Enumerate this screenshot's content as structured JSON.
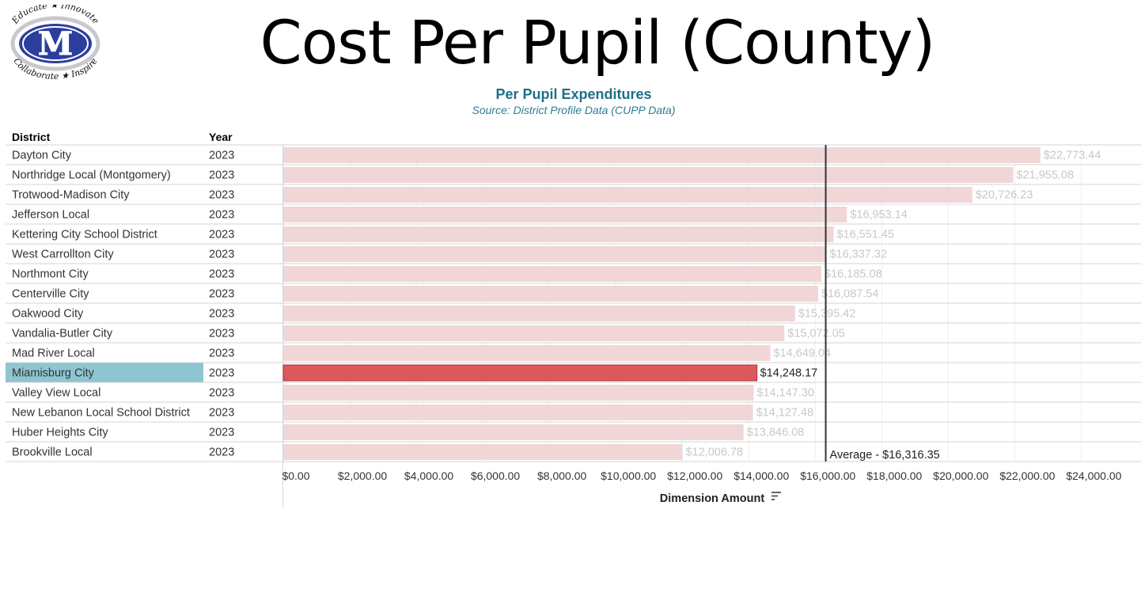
{
  "logo": {
    "letter": "M",
    "top_text": "Educate ★ Innovate",
    "bottom_text": "Collaborate ★ Inspire",
    "colors": {
      "primary": "#2c3e9e",
      "ring": "#c8c8d0"
    }
  },
  "header": {
    "title": "Cost Per Pupil (County)",
    "subtitle": "Per Pupil Expenditures",
    "source": "Source: District Profile Data (CUPP Data)"
  },
  "table": {
    "col_district": "District",
    "col_year": "Year"
  },
  "chart_data": {
    "type": "bar",
    "orientation": "horizontal",
    "xlabel": "Dimension Amount",
    "xlim": [
      0,
      25000
    ],
    "x_ticks": [
      "$0.00",
      "$2,000.00",
      "$4,000.00",
      "$6,000.00",
      "$8,000.00",
      "$10,000.00",
      "$12,000.00",
      "$14,000.00",
      "$16,000.00",
      "$18,000.00",
      "$20,000.00",
      "$22,000.00",
      "$24,000.00"
    ],
    "x_tick_values": [
      0,
      2000,
      4000,
      6000,
      8000,
      10000,
      12000,
      14000,
      16000,
      18000,
      20000,
      22000,
      24000
    ],
    "grid": true,
    "highlight": "Miamisburg City",
    "reference_line": {
      "value": 16316.35,
      "label": "Average - $16,316.35"
    },
    "colors": {
      "bar": "#f0d6d7",
      "highlight_bar": "#dd585c",
      "highlight_row": "#8ec5d1",
      "muted_label": "#c8c8c8",
      "reference": "#333333"
    },
    "rows": [
      {
        "district": "Dayton City",
        "year": "2023",
        "value": 22773.44,
        "label": "$22,773.44"
      },
      {
        "district": "Northridge Local (Montgomery)",
        "year": "2023",
        "value": 21955.08,
        "label": "$21,955.08"
      },
      {
        "district": "Trotwood-Madison City",
        "year": "2023",
        "value": 20726.23,
        "label": "$20,726.23"
      },
      {
        "district": "Jefferson Local",
        "year": "2023",
        "value": 16953.14,
        "label": "$16,953.14"
      },
      {
        "district": "Kettering City School District",
        "year": "2023",
        "value": 16551.45,
        "label": "$16,551.45"
      },
      {
        "district": "West Carrollton City",
        "year": "2023",
        "value": 16337.32,
        "label": "$16,337.32"
      },
      {
        "district": "Northmont City",
        "year": "2023",
        "value": 16185.08,
        "label": "$16,185.08"
      },
      {
        "district": "Centerville City",
        "year": "2023",
        "value": 16087.54,
        "label": "$16,087.54"
      },
      {
        "district": "Oakwood City",
        "year": "2023",
        "value": 15395.42,
        "label": "$15,395.42"
      },
      {
        "district": "Vandalia-Butler City",
        "year": "2023",
        "value": 15072.05,
        "label": "$15,072.05"
      },
      {
        "district": "Mad River Local",
        "year": "2023",
        "value": 14649.04,
        "label": "$14,649.04"
      },
      {
        "district": "Miamisburg City",
        "year": "2023",
        "value": 14248.17,
        "label": "$14,248.17"
      },
      {
        "district": "Valley View Local",
        "year": "2023",
        "value": 14147.3,
        "label": "$14,147.30"
      },
      {
        "district": "New Lebanon Local School District",
        "year": "2023",
        "value": 14127.48,
        "label": "$14,127.48"
      },
      {
        "district": "Huber Heights City",
        "year": "2023",
        "value": 13846.08,
        "label": "$13,846.08"
      },
      {
        "district": "Brookville Local",
        "year": "2023",
        "value": 12006.78,
        "label": "$12,006.78"
      }
    ]
  }
}
